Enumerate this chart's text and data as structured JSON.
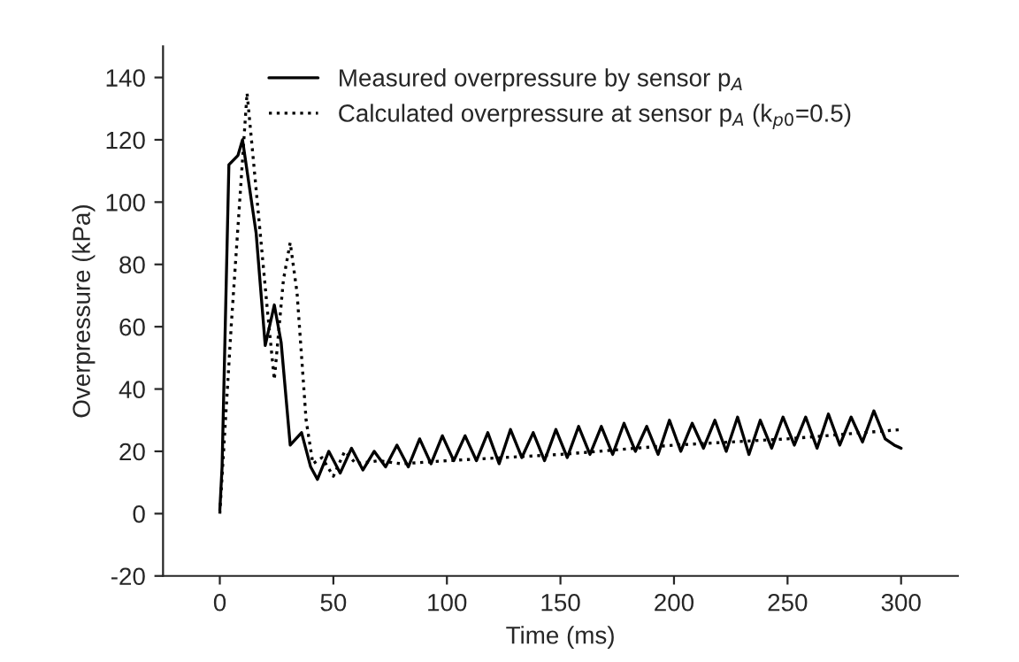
{
  "chart_data": {
    "type": "line",
    "xlabel": "Time (ms)",
    "ylabel": "Overpressure (kPa)",
    "xlim": [
      -25,
      325
    ],
    "xticks": [
      0,
      50,
      100,
      150,
      200,
      250,
      300
    ],
    "ylim": [
      -20,
      150
    ],
    "yticks": [
      -20,
      0,
      20,
      40,
      60,
      80,
      100,
      120,
      140
    ],
    "grid": false,
    "legend": "top",
    "marker": "none",
    "series": [
      {
        "name": "Measured overpressure by sensor p$_{A}$",
        "color": "#000000",
        "line_style": "solid",
        "x": [
          0,
          1,
          4,
          8,
          10,
          13,
          16,
          20,
          24,
          27,
          31,
          36,
          40,
          43,
          48,
          53,
          58,
          63,
          68,
          73,
          78,
          83,
          88,
          93,
          98,
          103,
          108,
          113,
          118,
          123,
          128,
          133,
          138,
          143,
          148,
          153,
          158,
          163,
          168,
          173,
          178,
          183,
          188,
          193,
          198,
          203,
          208,
          213,
          218,
          223,
          228,
          233,
          238,
          243,
          248,
          253,
          258,
          263,
          268,
          273,
          278,
          283,
          288,
          293,
          297,
          300
        ],
        "values": [
          1,
          15,
          112,
          115,
          120,
          105,
          90,
          54,
          67,
          55,
          22,
          26,
          15,
          11,
          20,
          13,
          21,
          14,
          20,
          15,
          22,
          15,
          24,
          16,
          25,
          17,
          25,
          17,
          26,
          16,
          27,
          18,
          26,
          17,
          27,
          18,
          28,
          19,
          28,
          19,
          29,
          20,
          28,
          19,
          30,
          20,
          29,
          21,
          30,
          20,
          31,
          19,
          30,
          21,
          31,
          22,
          31,
          21,
          32,
          22,
          31,
          23,
          33,
          24,
          22,
          21
        ]
      },
      {
        "name": "Calculated overpressure at sensor p$_{A}$ (k$_{p0}$=0.5)",
        "color": "#000000",
        "line_style": "dotted",
        "x": [
          0,
          5,
          12,
          16,
          21,
          24,
          28,
          31,
          34,
          38,
          41,
          45,
          50,
          55,
          60,
          70,
          80,
          100,
          150,
          200,
          250,
          300
        ],
        "values": [
          0,
          60,
          135,
          104,
          65,
          43,
          75,
          87,
          71,
          30,
          16,
          18,
          12,
          20,
          16,
          17,
          16,
          17,
          19,
          22,
          24,
          27
        ]
      }
    ]
  }
}
